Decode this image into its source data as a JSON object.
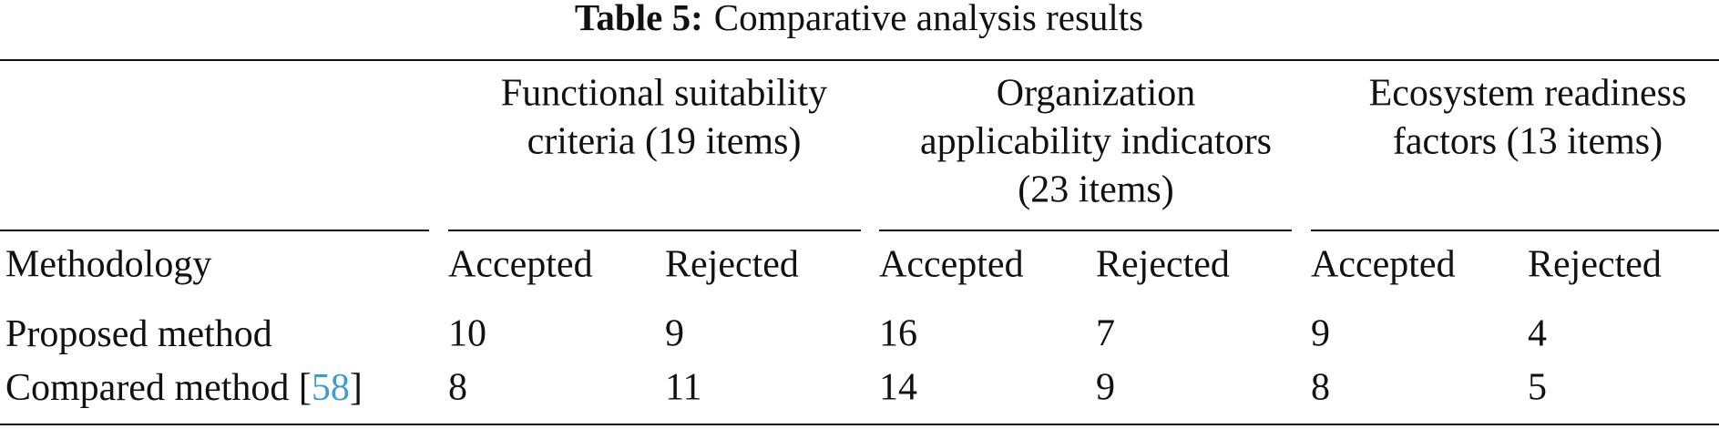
{
  "table": {
    "caption": {
      "label": "Table 5:",
      "text": "Comparative analysis results"
    },
    "groups": [
      {
        "lines": [
          "Functional suitability",
          "criteria (19 items)"
        ]
      },
      {
        "lines": [
          "Organization",
          "applicability indicators",
          "(23 items)"
        ]
      },
      {
        "lines": [
          "Ecosystem readiness",
          "factors (13 items)"
        ]
      }
    ],
    "columns": [
      "Methodology",
      "Accepted",
      "Rejected",
      "Accepted",
      "Rejected",
      "Accepted",
      "Rejected"
    ],
    "rows": [
      {
        "label": [
          "Proposed method"
        ],
        "cells": [
          10,
          9,
          16,
          7,
          9,
          4
        ]
      },
      {
        "label": [
          "Compared method [",
          "58",
          "]"
        ],
        "cells": [
          8,
          11,
          14,
          9,
          8,
          5
        ]
      }
    ]
  }
}
